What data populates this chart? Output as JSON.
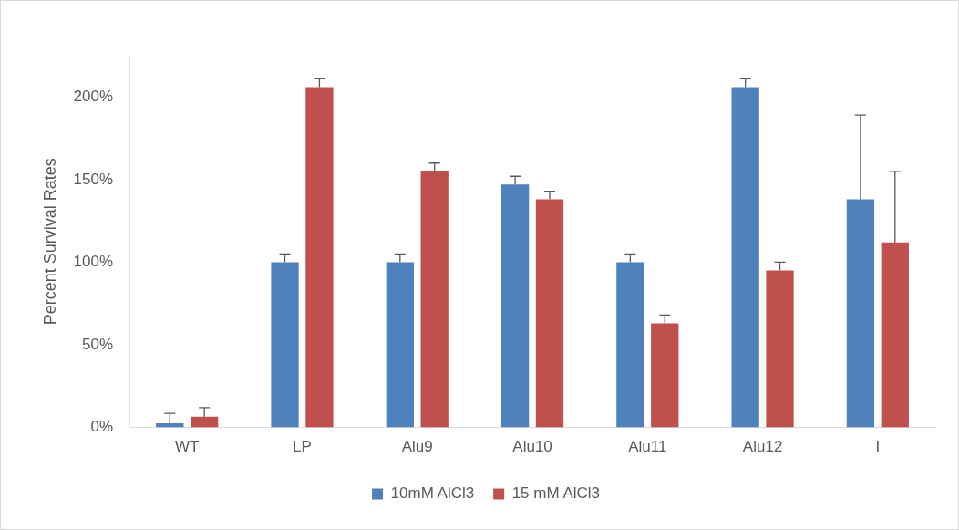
{
  "chart_data": {
    "type": "bar",
    "ylabel": "Percent Survival Rates",
    "categories": [
      "WT",
      "LP",
      "Alu9",
      "Alu10",
      "Alu11",
      "Alu12",
      "I"
    ],
    "series": [
      {
        "name": "10mM AlCl3",
        "color": "#4f81bd",
        "values": [
          2.5,
          100,
          100,
          147,
          100,
          206,
          138
        ],
        "errors": [
          [
            2.5,
            8.5
          ],
          [
            100,
            105
          ],
          [
            100,
            105
          ],
          [
            147,
            152
          ],
          [
            100,
            105
          ],
          [
            206,
            211
          ],
          [
            138,
            189
          ]
        ]
      },
      {
        "name": "15 mM AlCl3",
        "color": "#c0504d",
        "values": [
          6.5,
          206,
          155,
          138,
          63,
          95,
          112
        ],
        "errors": [
          [
            6.5,
            12
          ],
          [
            206,
            211
          ],
          [
            155,
            160
          ],
          [
            138,
            143
          ],
          [
            63,
            68
          ],
          [
            95,
            100
          ],
          [
            112,
            155
          ]
        ]
      }
    ],
    "ylim": [
      0,
      225
    ],
    "yticks": [
      {
        "value": 0,
        "label": "0%"
      },
      {
        "value": 50,
        "label": "50%"
      },
      {
        "value": 100,
        "label": "100%"
      },
      {
        "value": 150,
        "label": "150%"
      },
      {
        "value": 200,
        "label": "200%"
      }
    ],
    "grid": false,
    "legend": "bottom"
  }
}
